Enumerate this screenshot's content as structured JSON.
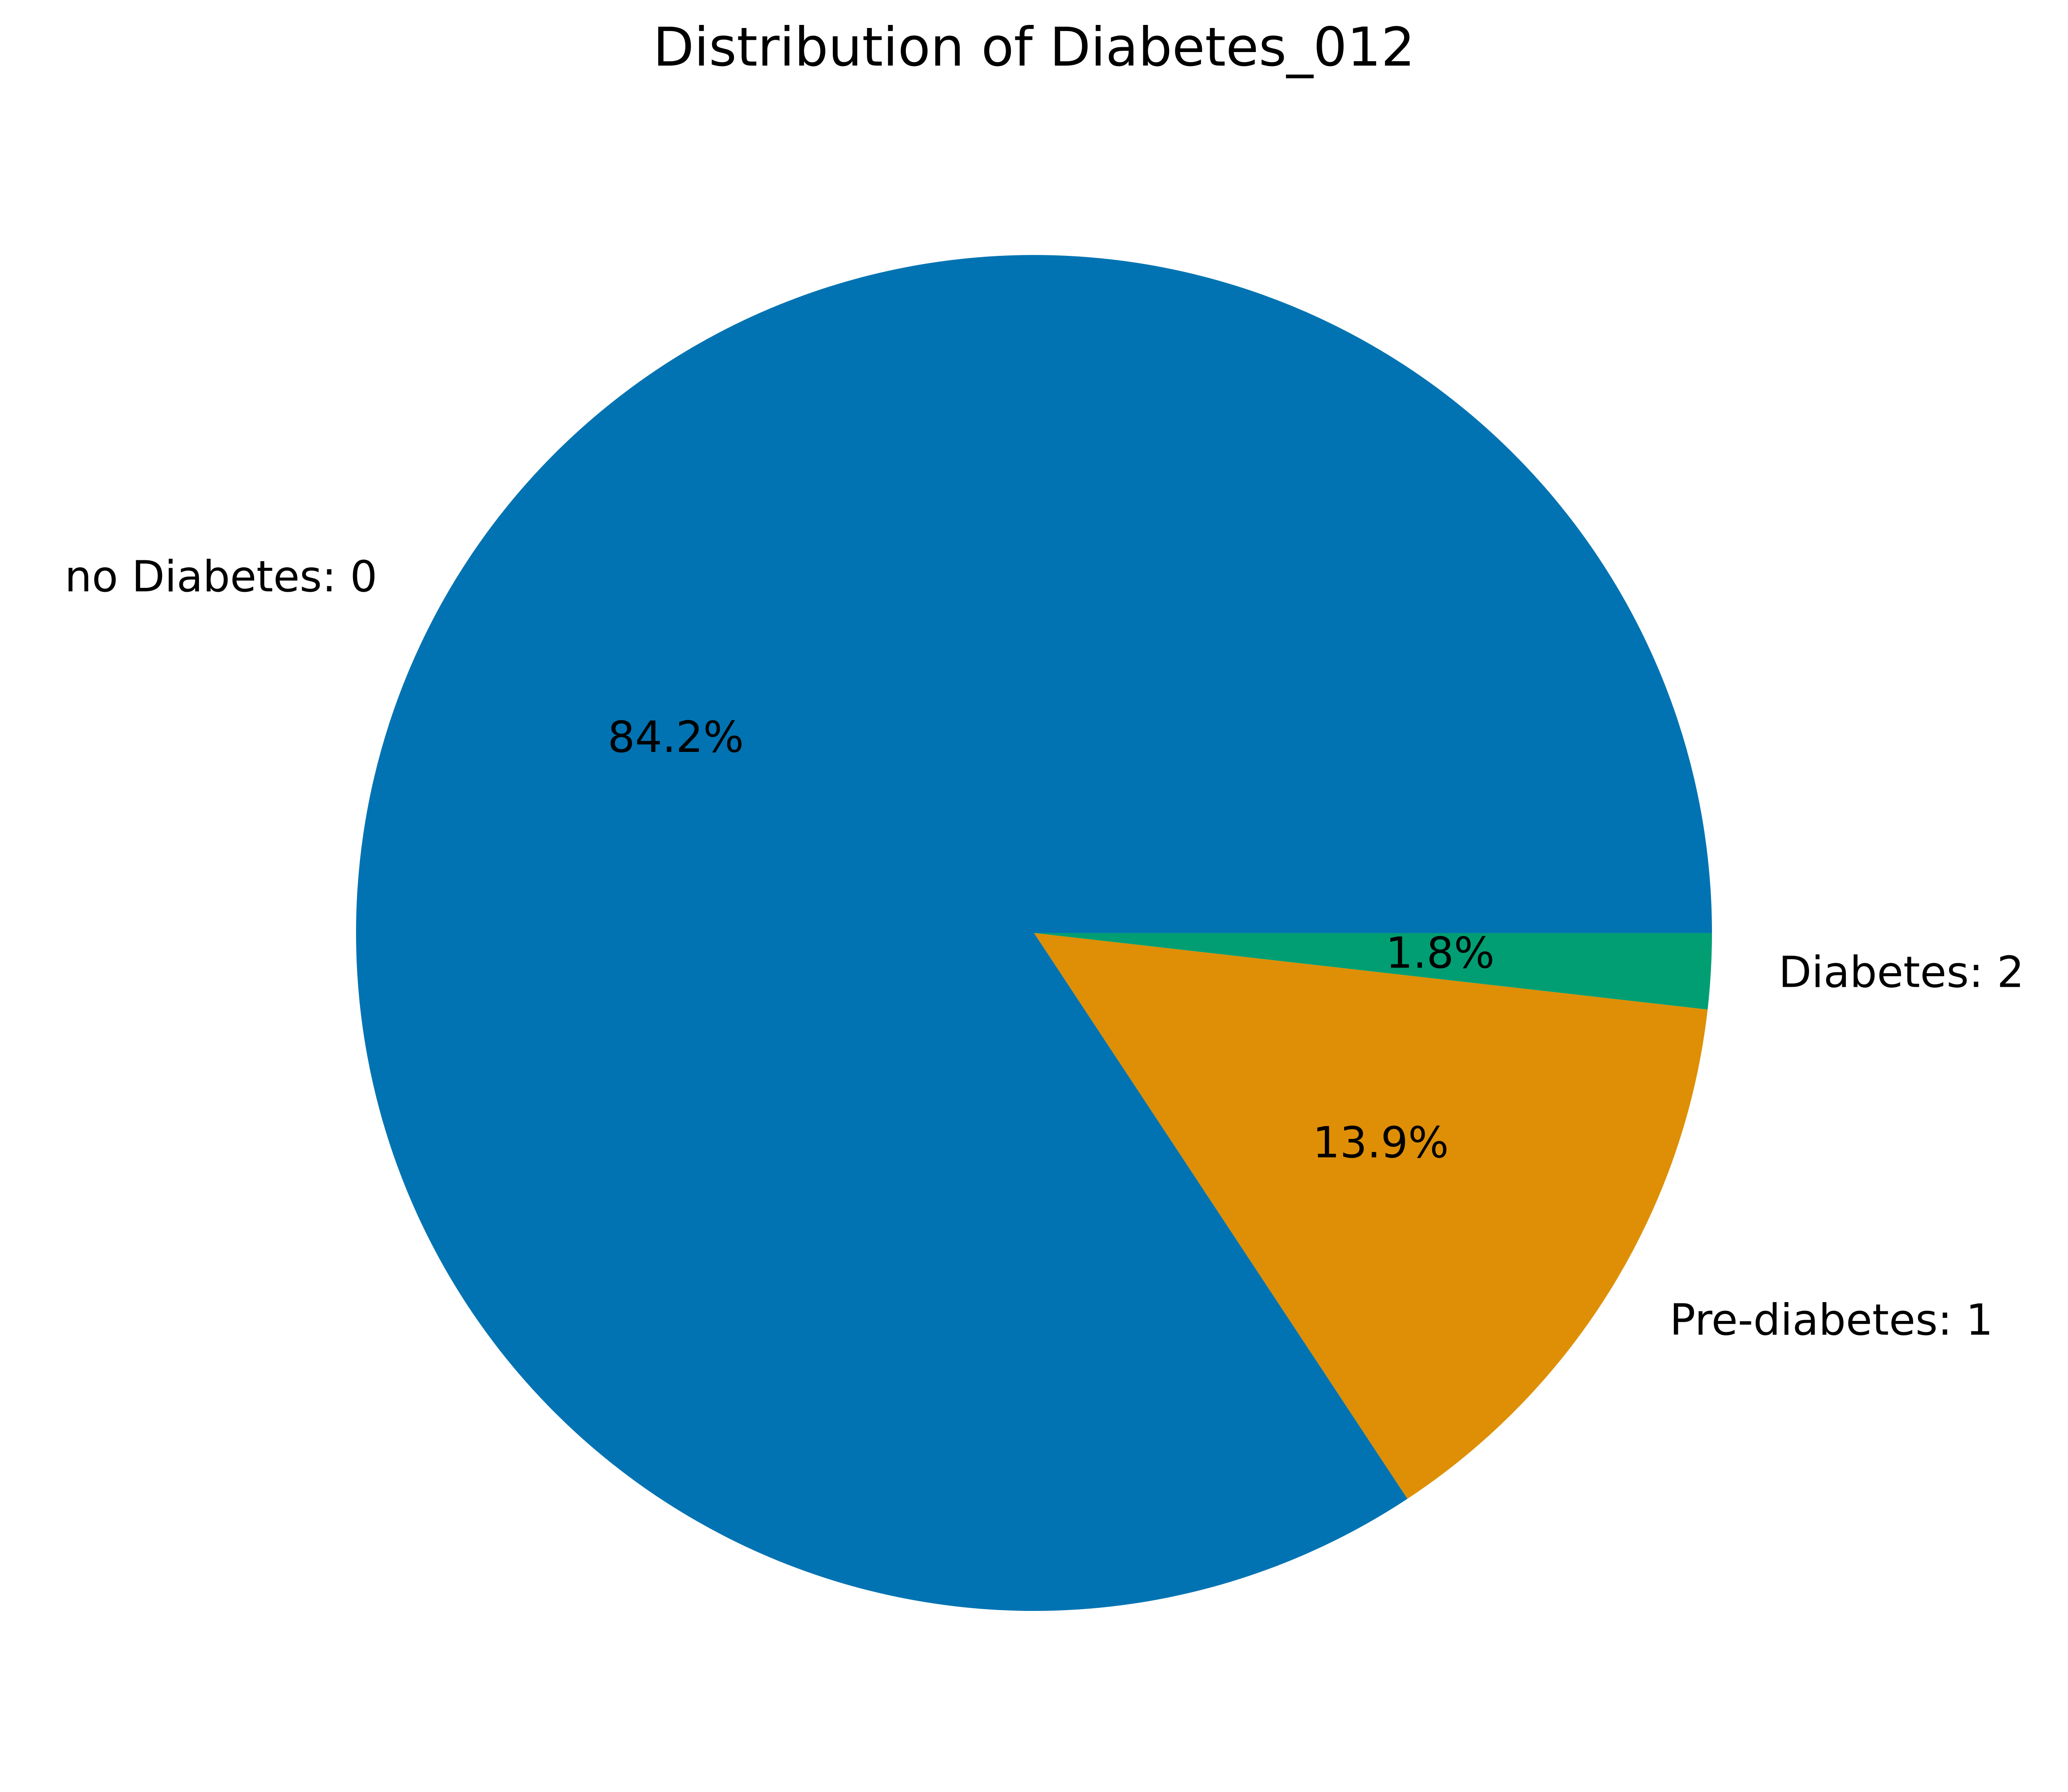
{
  "chart_data": {
    "type": "pie",
    "title": "Distribution of Diabetes_012",
    "start_angle": 0,
    "direction": "counterclockwise",
    "slices": [
      {
        "label": "no Diabetes: 0",
        "value": 84.2,
        "pct_label": "84.2%",
        "color": "#0173b2"
      },
      {
        "label": "Pre-diabetes: 1",
        "value": 13.9,
        "pct_label": "13.9%",
        "color": "#de8f05"
      },
      {
        "label": "Diabetes: 2",
        "value": 1.8,
        "pct_label": "1.8%",
        "color": "#029e73"
      }
    ]
  }
}
